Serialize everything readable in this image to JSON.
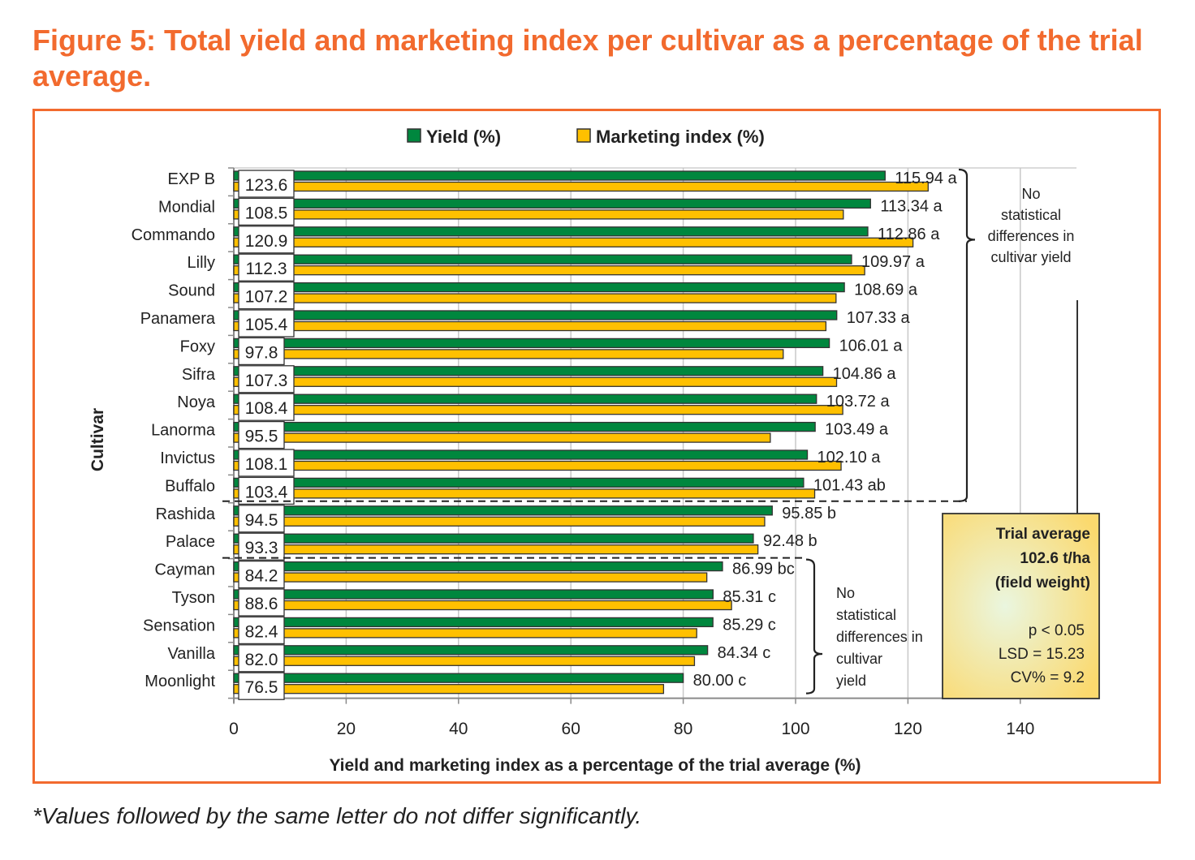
{
  "figure": {
    "title": "Figure 5: Total yield and marketing index per cultivar as a percentage of the trial average.",
    "footnote": "*Values followed by the same letter do not differ significantly."
  },
  "colors": {
    "yield": "#00873e",
    "marketing": "#ffc000",
    "accent": "#f26a2e",
    "box_fill": "#fbd96e"
  },
  "chart_data": {
    "type": "bar",
    "orientation": "horizontal",
    "title": "Figure 5: Total yield and marketing index per cultivar as a percentage of the trial average.",
    "xlabel": "Yield and marketing index as a percentage of the trial average (%)",
    "ylabel": "Cultivar",
    "xlim": [
      0,
      150
    ],
    "xticks": [
      0,
      20,
      40,
      60,
      80,
      100,
      120,
      140
    ],
    "grid": true,
    "legend_position": "top",
    "categories": [
      "EXP B",
      "Mondial",
      "Commando",
      "Lilly",
      "Sound",
      "Panamera",
      "Foxy",
      "Sifra",
      "Noya",
      "Lanorma",
      "Invictus",
      "Buffalo",
      "Rashida",
      "Palace",
      "Cayman",
      "Tyson",
      "Sensation",
      "Vanilla",
      "Moonlight"
    ],
    "series": [
      {
        "name": "Yield (%)",
        "values": [
          115.94,
          113.34,
          112.86,
          109.97,
          108.69,
          107.33,
          106.01,
          104.86,
          103.72,
          103.49,
          102.1,
          101.43,
          95.85,
          92.48,
          86.99,
          85.31,
          85.29,
          84.34,
          80.0
        ],
        "labels": [
          "115.94 a",
          "113.34 a",
          "112.86 a",
          "109.97 a",
          "108.69 a",
          "107.33 a",
          "106.01 a",
          "104.86 a",
          "103.72 a",
          "103.49 a",
          "102.10 a",
          "101.43 ab",
          "95.85 b",
          "92.48 b",
          "86.99 bc",
          "85.31 c",
          "85.29 c",
          "84.34 c",
          "80.00 c"
        ]
      },
      {
        "name": "Marketing index (%)",
        "values": [
          123.6,
          108.5,
          120.9,
          112.3,
          107.2,
          105.4,
          97.8,
          107.3,
          108.4,
          95.5,
          108.1,
          103.4,
          94.5,
          93.3,
          84.2,
          88.6,
          82.4,
          82.0,
          76.5
        ],
        "labels": [
          "123.6",
          "108.5",
          "120.9",
          "112.3",
          "107.2",
          "105.4",
          "97.8",
          "107.3",
          "108.4",
          "95.5",
          "108.1",
          "103.4",
          "94.5",
          "93.3",
          "84.2",
          "88.6",
          "82.4",
          "82.0",
          "76.5"
        ]
      }
    ],
    "annotations": {
      "group_top": [
        "No",
        "statistical",
        "differences in",
        "cultivar yield"
      ],
      "group_bottom": [
        "No",
        "statistical",
        "differences in",
        "cultivar",
        "yield"
      ],
      "stats_box": {
        "title": "Trial average",
        "value": "102.6 t/ha",
        "subtitle": "(field weight)",
        "p": "p < 0.05",
        "lsd": "LSD = 15.23",
        "cv": "CV% = 9.2"
      }
    }
  }
}
